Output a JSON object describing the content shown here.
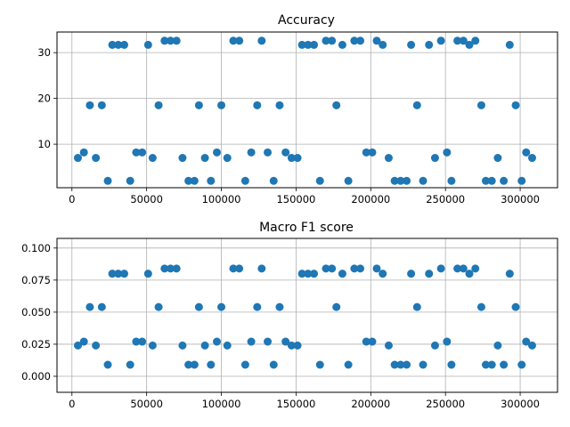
{
  "chart_data": [
    {
      "type": "scatter",
      "title": "Accuracy",
      "xlabel": "",
      "ylabel": "",
      "xlim": [
        -10000,
        325000
      ],
      "ylim": [
        0.5,
        34.5
      ],
      "xticks": [
        0,
        50000,
        100000,
        150000,
        200000,
        250000,
        300000
      ],
      "xtick_labels": [
        "0",
        "50000",
        "100000",
        "150000",
        "200000",
        "250000",
        "300000"
      ],
      "yticks": [
        10,
        20,
        30
      ],
      "ytick_labels": [
        "10",
        "20",
        "30"
      ],
      "grid": true,
      "color": "#1f77b4",
      "x": [
        4000,
        8000,
        12000,
        16000,
        20000,
        24000,
        27000,
        31000,
        35000,
        39000,
        43000,
        47000,
        51000,
        54000,
        58000,
        62000,
        66000,
        70000,
        74000,
        78000,
        82000,
        85000,
        89000,
        93000,
        97000,
        100000,
        104000,
        108000,
        112000,
        116000,
        120000,
        124000,
        127000,
        131000,
        135000,
        139000,
        143000,
        147000,
        151000,
        154000,
        158000,
        162000,
        166000,
        170000,
        174000,
        177000,
        181000,
        185000,
        189000,
        193000,
        197000,
        201000,
        204000,
        208000,
        212000,
        216000,
        220000,
        224000,
        227000,
        231000,
        235000,
        239000,
        243000,
        247000,
        251000,
        254000,
        258000,
        262000,
        266000,
        270000,
        274000,
        277000,
        281000,
        285000,
        289000,
        293000,
        297000,
        301000,
        304000,
        308000
      ],
      "y": [
        7.0,
        8.2,
        18.5,
        7.0,
        18.5,
        2.0,
        31.7,
        31.7,
        31.7,
        2.0,
        8.2,
        8.2,
        31.7,
        7.0,
        18.5,
        32.6,
        32.6,
        32.6,
        7.0,
        2.0,
        2.0,
        18.5,
        7.0,
        2.0,
        8.2,
        18.5,
        7.0,
        32.6,
        32.6,
        2.0,
        8.2,
        18.5,
        32.6,
        8.2,
        2.0,
        18.5,
        8.2,
        7.0,
        7.0,
        31.7,
        31.7,
        31.7,
        2.0,
        32.6,
        32.6,
        18.5,
        31.7,
        2.0,
        32.6,
        32.6,
        8.2,
        8.2,
        32.6,
        31.7,
        7.0,
        2.0,
        2.0,
        2.0,
        31.7,
        18.5,
        2.0,
        31.7,
        7.0,
        32.6,
        8.2,
        2.0,
        32.6,
        32.6,
        31.7,
        32.6,
        18.5,
        2.0,
        2.0,
        7.0,
        2.0,
        31.7,
        18.5,
        2.0,
        8.2,
        7.0
      ]
    },
    {
      "type": "scatter",
      "title": "Macro F1 score",
      "xlabel": "",
      "ylabel": "",
      "xlim": [
        -10000,
        325000
      ],
      "ylim": [
        -0.0125,
        0.1075
      ],
      "xticks": [
        0,
        50000,
        100000,
        150000,
        200000,
        250000,
        300000
      ],
      "xtick_labels": [
        "0",
        "50000",
        "100000",
        "150000",
        "200000",
        "250000",
        "300000"
      ],
      "yticks": [
        0.0,
        0.025,
        0.05,
        0.075,
        0.1
      ],
      "ytick_labels": [
        "0.000",
        "0.025",
        "0.050",
        "0.075",
        "0.100"
      ],
      "grid": true,
      "color": "#1f77b4",
      "x": [
        4000,
        8000,
        12000,
        16000,
        20000,
        24000,
        27000,
        31000,
        35000,
        39000,
        43000,
        47000,
        51000,
        54000,
        58000,
        62000,
        66000,
        70000,
        74000,
        78000,
        82000,
        85000,
        89000,
        93000,
        97000,
        100000,
        104000,
        108000,
        112000,
        116000,
        120000,
        124000,
        127000,
        131000,
        135000,
        139000,
        143000,
        147000,
        151000,
        154000,
        158000,
        162000,
        166000,
        170000,
        174000,
        177000,
        181000,
        185000,
        189000,
        193000,
        197000,
        201000,
        204000,
        208000,
        212000,
        216000,
        220000,
        224000,
        227000,
        231000,
        235000,
        239000,
        243000,
        247000,
        251000,
        254000,
        258000,
        262000,
        266000,
        270000,
        274000,
        277000,
        281000,
        285000,
        289000,
        293000,
        297000,
        301000,
        304000,
        308000
      ],
      "y": [
        0.024,
        0.027,
        0.054,
        0.024,
        0.054,
        0.009,
        0.08,
        0.08,
        0.08,
        0.009,
        0.027,
        0.027,
        0.08,
        0.024,
        0.054,
        0.084,
        0.084,
        0.084,
        0.024,
        0.009,
        0.009,
        0.054,
        0.024,
        0.009,
        0.027,
        0.054,
        0.024,
        0.084,
        0.084,
        0.009,
        0.027,
        0.054,
        0.084,
        0.027,
        0.009,
        0.054,
        0.027,
        0.024,
        0.024,
        0.08,
        0.08,
        0.08,
        0.009,
        0.084,
        0.084,
        0.054,
        0.08,
        0.009,
        0.084,
        0.084,
        0.027,
        0.027,
        0.084,
        0.08,
        0.024,
        0.009,
        0.009,
        0.009,
        0.08,
        0.054,
        0.009,
        0.08,
        0.024,
        0.084,
        0.027,
        0.009,
        0.084,
        0.084,
        0.08,
        0.084,
        0.054,
        0.009,
        0.009,
        0.024,
        0.009,
        0.08,
        0.054,
        0.009,
        0.027,
        0.024
      ]
    }
  ]
}
